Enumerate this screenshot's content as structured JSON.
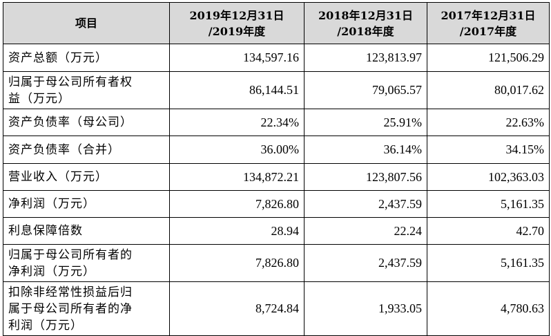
{
  "header": {
    "item": "项目",
    "col1": [
      "2019年12月31日",
      "/2019年度"
    ],
    "col2": [
      "2018年12月31日",
      "/2018年度"
    ],
    "col3": [
      "2017年12月31日",
      "/2017年度"
    ]
  },
  "rows": [
    {
      "label": [
        "资产总额（万元）"
      ],
      "values": [
        "134,597.16",
        "123,813.97",
        "121,506.29"
      ]
    },
    {
      "label": [
        "归属于母公司所有者权",
        "益（万元）"
      ],
      "values": [
        "86,144.51",
        "79,065.57",
        "80,017.62"
      ]
    },
    {
      "label": [
        "资产负债率（母公司）"
      ],
      "values": [
        "22.34%",
        "25.91%",
        "22.63%"
      ]
    },
    {
      "label": [
        "资产负债率（合并）"
      ],
      "values": [
        "36.00%",
        "36.14%",
        "34.15%"
      ]
    },
    {
      "label": [
        "营业收入（万元）"
      ],
      "values": [
        "134,872.21",
        "123,807.56",
        "102,363.03"
      ]
    },
    {
      "label": [
        "净利润（万元）"
      ],
      "values": [
        "7,826.80",
        "2,437.59",
        "5,161.35"
      ]
    },
    {
      "label": [
        "利息保障倍数"
      ],
      "values": [
        "28.94",
        "22.24",
        "42.70"
      ]
    },
    {
      "label": [
        "归属于母公司所有者的",
        "净利润（万元）"
      ],
      "values": [
        "7,826.80",
        "2,437.59",
        "5,161.35"
      ]
    },
    {
      "label": [
        "扣除非经常性损益后归",
        "属于母公司所有者的净",
        "利润（万元）"
      ],
      "values": [
        "8,724.84",
        "1,933.05",
        "4,780.63"
      ]
    }
  ]
}
